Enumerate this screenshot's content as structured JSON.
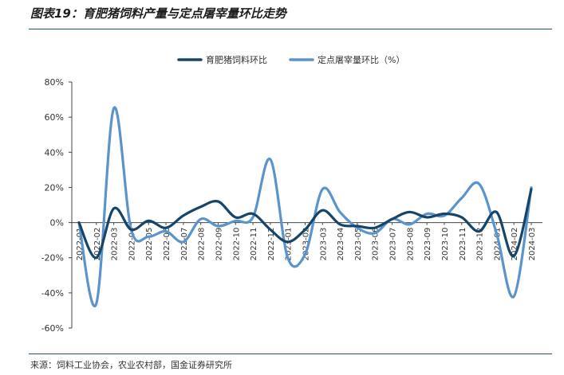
{
  "figure_title": "图表19：育肥猪饲料产量与定点屠宰量环比走势",
  "source_note": "来源：饲料工业协会，农业农村部，国金证券研究所",
  "colors": {
    "series1": "#17456a",
    "series2": "#5b93cc",
    "rule": "#1f4e79"
  },
  "chart_data": {
    "type": "line",
    "title": "",
    "xlabel": "",
    "ylabel": "",
    "ylim": [
      -60,
      80
    ],
    "yticks": [
      80,
      60,
      40,
      20,
      0,
      -20,
      -40,
      -60
    ],
    "ytick_labels": [
      "80%",
      "60%",
      "40%",
      "20%",
      "0%",
      "-20%",
      "-40%",
      "-60%"
    ],
    "grid": false,
    "legend_position": "top-center",
    "categories": [
      "2022-01",
      "2022-02",
      "2022-03",
      "2022-04",
      "2022-05",
      "2022-06",
      "2022-07",
      "2022-08",
      "2022-09",
      "2022-10",
      "2022-11",
      "2022-12",
      "2023-01",
      "2023-02",
      "2023-03",
      "2023-04",
      "2023-05",
      "2023-06",
      "2023-07",
      "2023-08",
      "2023-09",
      "2023-10",
      "2023-11",
      "2023-12",
      "2024-01",
      "2024-02",
      "2024-03"
    ],
    "series": [
      {
        "name": "育肥猪饲料环比",
        "values": [
          0,
          -20,
          8,
          -4,
          1,
          -3,
          4,
          9,
          12,
          3,
          5,
          -4,
          -11,
          -4,
          7,
          -1,
          -2,
          -3,
          2,
          6,
          3,
          5,
          3,
          -5,
          6,
          -19,
          19
        ]
      },
      {
        "name": "定点屠宰量环比（%）",
        "values": [
          0,
          -46,
          65,
          -4,
          -8,
          -5,
          -11,
          2,
          -2,
          1,
          3,
          36,
          -20,
          -18,
          19,
          6,
          -3,
          -6,
          2,
          -1,
          5,
          4,
          14,
          22,
          -6,
          -42,
          20
        ]
      }
    ]
  }
}
